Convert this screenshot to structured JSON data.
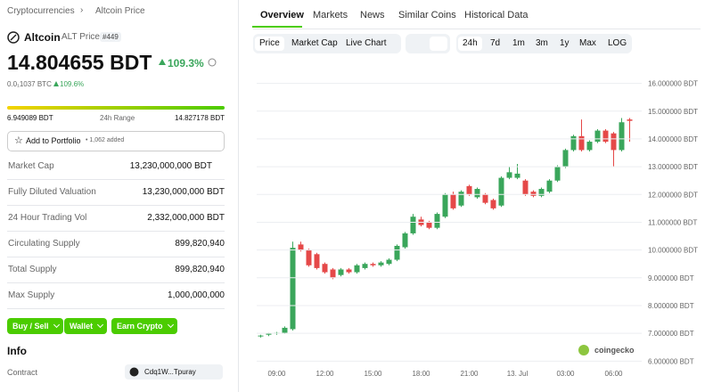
{
  "breadcrumb": [
    "Cryptocurrencies",
    "Altcoin Price"
  ],
  "coin": {
    "name": "Altcoin",
    "symbol_label": "ALT Price",
    "rank": "#449",
    "price": "14.804655 BDT",
    "change": "109.3%",
    "btc_price": "0.0₁1037 BTC",
    "btc_change": "109.6%"
  },
  "range": {
    "low": "6.949089 BDT",
    "label": "24h Range",
    "high": "14.827178 BDT"
  },
  "portfolio": {
    "button": "Add to Portfolio",
    "count": "• 1,062 added"
  },
  "stats": [
    {
      "label": "Market Cap",
      "value": "13,230,000,000 BDT"
    },
    {
      "label": "Fully Diluted Valuation",
      "value": "13,230,000,000 BDT"
    },
    {
      "label": "24 Hour Trading Vol",
      "value": "2,332,000,000 BDT"
    },
    {
      "label": "Circulating Supply",
      "value": "899,820,940"
    },
    {
      "label": "Total Supply",
      "value": "899,820,940"
    },
    {
      "label": "Max Supply",
      "value": "1,000,000,000"
    }
  ],
  "actions": [
    "Buy / Sell",
    "Wallet",
    "Earn Crypto"
  ],
  "info": {
    "title": "Info",
    "contract_label": "Contract",
    "contract": "Cdq1W...Tpuray"
  },
  "tabs": [
    "Overview",
    "Markets",
    "News",
    "Similar Coins",
    "Historical Data"
  ],
  "chart_modes": [
    "Price",
    "Market Cap",
    "Live Chart"
  ],
  "ranges": [
    "24h",
    "7d",
    "1m",
    "3m",
    "1y",
    "Max",
    "LOG"
  ],
  "watermark": "coingecko",
  "chart_data": {
    "type": "candlestick",
    "categories": [
      null,
      null,
      "09:00",
      null,
      null,
      null,
      null,
      null,
      "12:00",
      null,
      null,
      null,
      null,
      null,
      "15:00",
      null,
      null,
      null,
      null,
      null,
      "18:00",
      null,
      null,
      null,
      null,
      null,
      "21:00",
      null,
      null,
      null,
      null,
      null,
      "13. Jul",
      null,
      null,
      null,
      null,
      null,
      "03:00",
      null,
      null,
      null,
      null,
      null,
      "06:00",
      null,
      null
    ],
    "open": [
      6.9,
      6.95,
      7.0,
      7.02,
      7.15,
      10.2,
      10.0,
      9.85,
      9.5,
      9.3,
      9.1,
      9.3,
      9.2,
      9.35,
      9.5,
      9.45,
      9.5,
      9.65,
      10.1,
      10.6,
      11.1,
      11.0,
      10.8,
      11.2,
      12.0,
      11.6,
      12.3,
      11.9,
      12.0,
      11.8,
      11.6,
      12.6,
      12.6,
      12.5,
      12.1,
      11.95,
      12.1,
      12.5,
      13.0,
      13.6,
      14.1,
      13.6,
      13.9,
      14.3,
      14.2,
      13.6,
      14.7
    ],
    "high": [
      6.95,
      7.02,
      7.05,
      7.25,
      10.3,
      10.3,
      10.05,
      9.9,
      9.55,
      9.35,
      9.35,
      9.35,
      9.5,
      9.55,
      9.55,
      9.6,
      9.7,
      10.2,
      10.65,
      11.3,
      11.2,
      11.05,
      11.35,
      12.05,
      12.1,
      12.15,
      12.35,
      12.25,
      12.05,
      11.85,
      12.65,
      13.0,
      13.1,
      12.55,
      12.15,
      12.25,
      12.55,
      13.05,
      13.65,
      14.15,
      14.7,
      13.95,
      14.35,
      14.35,
      14.25,
      14.75,
      14.75
    ],
    "low": [
      6.85,
      6.9,
      6.95,
      6.98,
      7.1,
      9.95,
      9.4,
      9.3,
      9.15,
      8.95,
      9.05,
      9.15,
      9.15,
      9.3,
      9.4,
      9.4,
      9.45,
      9.6,
      10.05,
      10.55,
      10.85,
      10.75,
      10.75,
      11.15,
      11.45,
      11.55,
      11.95,
      11.85,
      11.65,
      11.45,
      11.55,
      12.55,
      12.55,
      11.95,
      11.9,
      11.9,
      12.05,
      12.45,
      12.95,
      13.55,
      13.55,
      13.55,
      13.85,
      13.85,
      13.0,
      13.55,
      13.9
    ],
    "close": [
      6.92,
      7.0,
      7.02,
      7.2,
      10.08,
      10.0,
      9.45,
      9.35,
      9.2,
      9.0,
      9.3,
      9.2,
      9.45,
      9.5,
      9.45,
      9.55,
      9.65,
      10.15,
      10.6,
      11.2,
      10.9,
      10.8,
      11.3,
      12.0,
      11.5,
      12.1,
      12.0,
      12.2,
      11.7,
      11.5,
      12.6,
      12.8,
      12.75,
      12.0,
      11.95,
      12.2,
      12.5,
      13.0,
      13.6,
      14.1,
      13.6,
      13.9,
      14.3,
      13.9,
      13.6,
      14.6,
      14.65
    ],
    "up_color": "#3aa65b",
    "down_color": "#e54848",
    "ylim": [
      5.85,
      16.5
    ],
    "yticks": [
      {
        "value": 6,
        "label": "6.000000 BDT"
      },
      {
        "value": 7,
        "label": "7.000000 BDT"
      },
      {
        "value": 8,
        "label": "8.000000 BDT"
      },
      {
        "value": 9,
        "label": "9.000000 BDT"
      },
      {
        "value": 10,
        "label": "10.000000 BDT"
      },
      {
        "value": 11,
        "label": "11.000000 BDT"
      },
      {
        "value": 12,
        "label": "12.000000 BDT"
      },
      {
        "value": 13,
        "label": "13.000000 BDT"
      },
      {
        "value": 14,
        "label": "14.000000 BDT"
      },
      {
        "value": 15,
        "label": "15.000000 BDT"
      },
      {
        "value": 16,
        "label": "16.000000 BDT"
      }
    ],
    "grid": true
  }
}
